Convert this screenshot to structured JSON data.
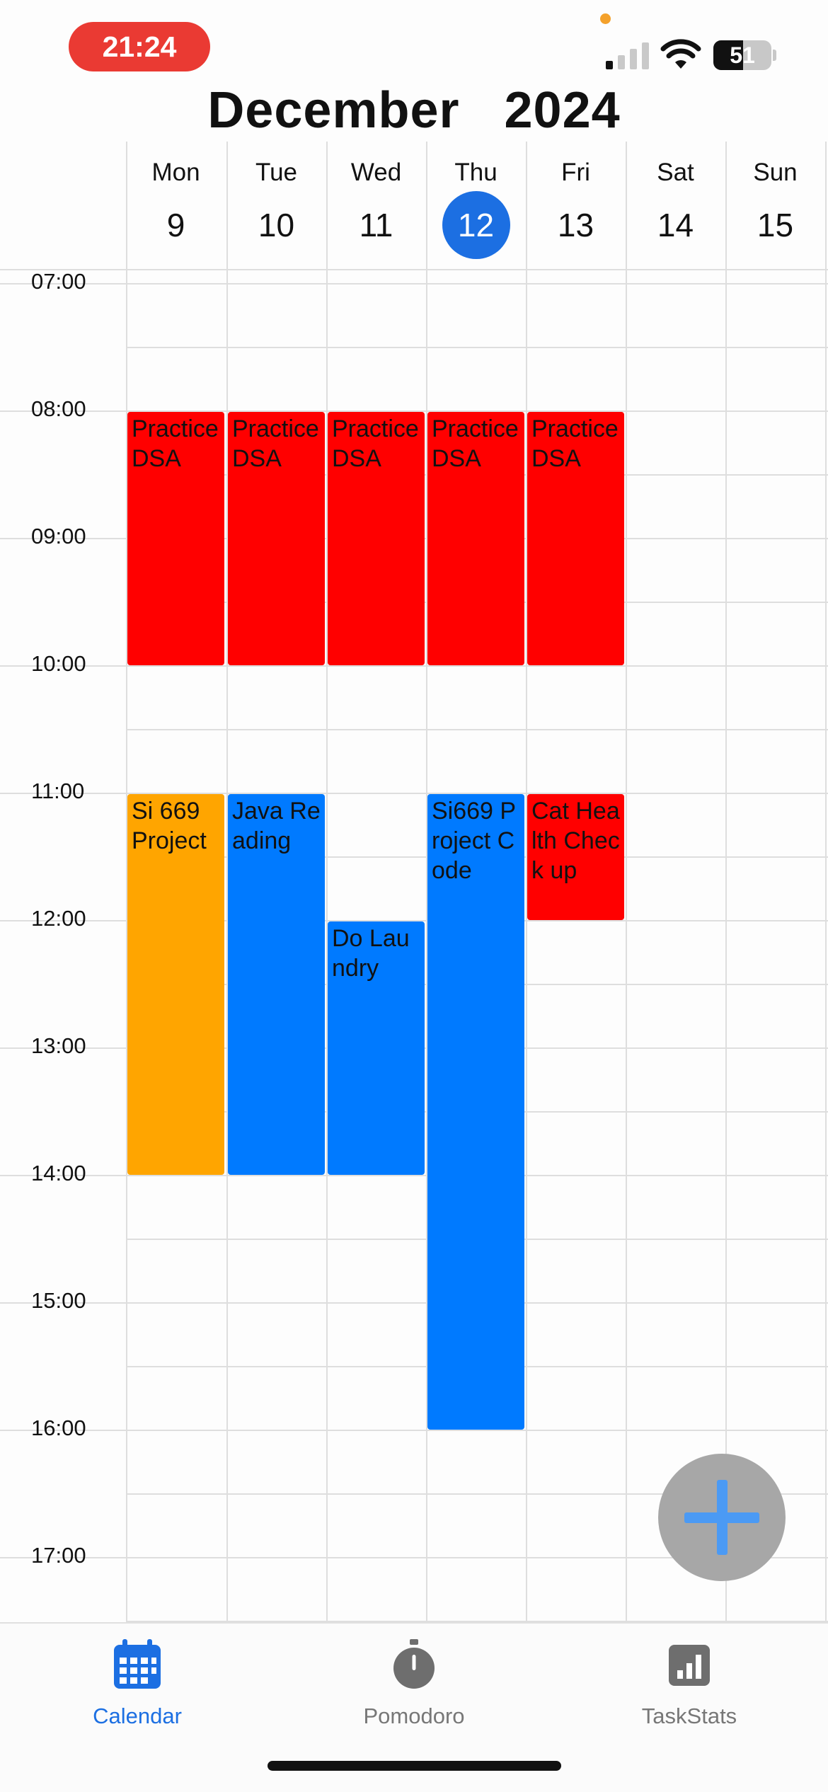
{
  "status_bar": {
    "time": "21:24",
    "battery": "51",
    "battery_level": 0.51
  },
  "header": {
    "month": "December",
    "year": "2024"
  },
  "days": [
    {
      "name": "Mon",
      "num": "9",
      "today": false
    },
    {
      "name": "Tue",
      "num": "10",
      "today": false
    },
    {
      "name": "Wed",
      "num": "11",
      "today": false
    },
    {
      "name": "Thu",
      "num": "12",
      "today": true
    },
    {
      "name": "Fri",
      "num": "13",
      "today": false
    },
    {
      "name": "Sat",
      "num": "14",
      "today": false
    },
    {
      "name": "Sun",
      "num": "15",
      "today": false
    }
  ],
  "hours": [
    "07:00",
    "08:00",
    "09:00",
    "10:00",
    "11:00",
    "12:00",
    "13:00",
    "14:00",
    "15:00",
    "16:00",
    "17:00"
  ],
  "events": [
    {
      "title": "Practice DSA",
      "day": 0,
      "start": "08:00",
      "end": "10:00",
      "color": "#ff0000"
    },
    {
      "title": "Practice DSA",
      "day": 1,
      "start": "08:00",
      "end": "10:00",
      "color": "#ff0000"
    },
    {
      "title": "Practice DSA",
      "day": 2,
      "start": "08:00",
      "end": "10:00",
      "color": "#ff0000"
    },
    {
      "title": "Practice DSA",
      "day": 3,
      "start": "08:00",
      "end": "10:00",
      "color": "#ff0000"
    },
    {
      "title": "Practice DSA",
      "day": 4,
      "start": "08:00",
      "end": "10:00",
      "color": "#ff0000"
    },
    {
      "title": "Si 669 Project",
      "day": 0,
      "start": "11:00",
      "end": "14:00",
      "color": "#ffa500"
    },
    {
      "title": "Java Reading",
      "day": 1,
      "start": "11:00",
      "end": "14:00",
      "color": "#007aff"
    },
    {
      "title": "Do Laundry",
      "day": 2,
      "start": "12:00",
      "end": "14:00",
      "color": "#007aff"
    },
    {
      "title": "Si669 Project Code",
      "day": 3,
      "start": "11:00",
      "end": "16:00",
      "color": "#007aff"
    },
    {
      "title": "Cat Health Check up",
      "day": 4,
      "start": "11:00",
      "end": "12:00",
      "color": "#ff0000"
    }
  ],
  "fab": {
    "icon": "plus-icon"
  },
  "tabs": [
    {
      "label": "Calendar",
      "icon": "calendar-icon",
      "active": true
    },
    {
      "label": "Pomodoro",
      "icon": "stopwatch-icon",
      "active": false
    },
    {
      "label": "TaskStats",
      "icon": "chart-icon",
      "active": false
    }
  ],
  "colors": {
    "accent": "#1c6fe2",
    "inactive": "#777777"
  }
}
